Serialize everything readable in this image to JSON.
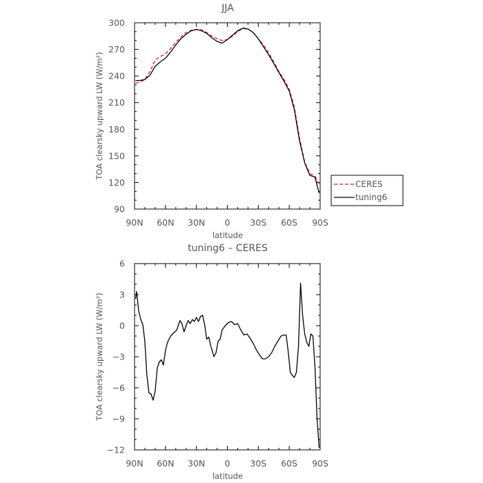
{
  "chart_data": [
    {
      "type": "line",
      "title": "JJA",
      "xlabel": "latitude",
      "ylabel": "TOA clearsky upward LW (W/m²)",
      "xlim": [
        90,
        -90
      ],
      "ylim": [
        90,
        300
      ],
      "x_tick_values": [
        90,
        60,
        30,
        0,
        -30,
        -60,
        -90
      ],
      "x_tick_labels": [
        "90N",
        "60N",
        "30N",
        "0",
        "30S",
        "60S",
        "90S"
      ],
      "y_ticks": [
        90,
        120,
        150,
        180,
        210,
        240,
        270,
        300
      ],
      "legend": {
        "position": "right",
        "entries": [
          "CERES",
          "tuning6"
        ]
      },
      "series": [
        {
          "name": "CERES",
          "color": "#e0141c",
          "dash": "dashed",
          "points": [
            [
              89,
              232
            ],
            [
              85,
              233
            ],
            [
              80,
              236
            ],
            [
              75,
              245
            ],
            [
              70,
              258
            ],
            [
              65,
              262
            ],
            [
              60,
              265
            ],
            [
              55,
              271
            ],
            [
              50,
              278
            ],
            [
              45,
              284
            ],
            [
              40,
              289
            ],
            [
              35,
              291.5
            ],
            [
              30,
              292.5
            ],
            [
              25,
              292
            ],
            [
              20,
              289
            ],
            [
              15,
              285
            ],
            [
              10,
              282
            ],
            [
              5,
              280
            ],
            [
              0,
              281
            ],
            [
              -5,
              285
            ],
            [
              -10,
              290
            ],
            [
              -15,
              293.5
            ],
            [
              -20,
              293
            ],
            [
              -25,
              289
            ],
            [
              -30,
              282
            ],
            [
              -35,
              275
            ],
            [
              -40,
              266
            ],
            [
              -45,
              256
            ],
            [
              -50,
              245
            ],
            [
              -55,
              236
            ],
            [
              -60,
              225
            ],
            [
              -65,
              205
            ],
            [
              -70,
              170
            ],
            [
              -75,
              143
            ],
            [
              -80,
              130
            ],
            [
              -85,
              127
            ],
            [
              -89,
              118
            ]
          ]
        },
        {
          "name": "tuning6",
          "color": "#000000",
          "dash": "solid",
          "points": [
            [
              89,
              235
            ],
            [
              85,
              235
            ],
            [
              80,
              236
            ],
            [
              75,
              241
            ],
            [
              70,
              251
            ],
            [
              65,
              256
            ],
            [
              60,
              260
            ],
            [
              55,
              267
            ],
            [
              50,
              275
            ],
            [
              45,
              282
            ],
            [
              40,
              287
            ],
            [
              35,
              291
            ],
            [
              30,
              292.5
            ],
            [
              25,
              291
            ],
            [
              20,
              288
            ],
            [
              15,
              283
            ],
            [
              10,
              279
            ],
            [
              5,
              277
            ],
            [
              0,
              281
            ],
            [
              -5,
              286
            ],
            [
              -10,
              291
            ],
            [
              -15,
              294
            ],
            [
              -20,
              293
            ],
            [
              -25,
              289
            ],
            [
              -30,
              282
            ],
            [
              -35,
              273
            ],
            [
              -40,
              264
            ],
            [
              -45,
              254
            ],
            [
              -50,
              244
            ],
            [
              -55,
              234
            ],
            [
              -60,
              223
            ],
            [
              -65,
              202
            ],
            [
              -70,
              167
            ],
            [
              -75,
              142
            ],
            [
              -80,
              128
            ],
            [
              -85,
              126
            ],
            [
              -89,
              108
            ]
          ]
        }
      ]
    },
    {
      "type": "line",
      "title": "tuning6 – CERES",
      "xlabel": "latitude",
      "ylabel": "TOA clearsky upward LW (W/m²)",
      "xlim": [
        90,
        -90
      ],
      "ylim": [
        -12,
        6
      ],
      "x_tick_values": [
        90,
        60,
        30,
        0,
        -30,
        -60,
        -90
      ],
      "x_tick_labels": [
        "90N",
        "60N",
        "30N",
        "0",
        "30S",
        "60S",
        "90S"
      ],
      "y_ticks": [
        -12,
        -9,
        -6,
        -3,
        0,
        3,
        6
      ],
      "y_tick_labels": [
        "−12",
        "−9",
        "−6",
        "−3",
        "0",
        "3",
        "6"
      ],
      "series": [
        {
          "name": "tuning6",
          "color": "#000000",
          "dash": "solid",
          "points": [
            [
              89,
              2.6
            ],
            [
              88,
              3.3
            ],
            [
              86,
              1.4
            ],
            [
              84,
              0.6
            ],
            [
              82,
              0.1
            ],
            [
              80,
              -1.5
            ],
            [
              78,
              -4.8
            ],
            [
              76,
              -6.5
            ],
            [
              74,
              -6.6
            ],
            [
              72,
              -7.2
            ],
            [
              70,
              -6.3
            ],
            [
              68,
              -4.1
            ],
            [
              66,
              -3.5
            ],
            [
              64,
              -3.3
            ],
            [
              62,
              -3.8
            ],
            [
              60,
              -2.4
            ],
            [
              58,
              -1.6
            ],
            [
              55,
              -1.0
            ],
            [
              52,
              -0.7
            ],
            [
              49,
              -0.4
            ],
            [
              46,
              0.5
            ],
            [
              44,
              0.2
            ],
            [
              42,
              -0.6
            ],
            [
              40,
              0.0
            ],
            [
              38,
              0.5
            ],
            [
              36,
              0.2
            ],
            [
              34,
              0.6
            ],
            [
              32,
              0.4
            ],
            [
              30,
              0.8
            ],
            [
              28,
              0.4
            ],
            [
              26,
              0.9
            ],
            [
              24,
              1.0
            ],
            [
              22,
              0.1
            ],
            [
              20,
              -1.3
            ],
            [
              18,
              -1.1
            ],
            [
              16,
              -2.0
            ],
            [
              13,
              -3.0
            ],
            [
              11,
              -2.6
            ],
            [
              9,
              -1.5
            ],
            [
              7,
              -1.3
            ],
            [
              5,
              -0.4
            ],
            [
              2,
              0.0
            ],
            [
              -1,
              0.3
            ],
            [
              -4,
              0.4
            ],
            [
              -7,
              0.1
            ],
            [
              -10,
              0.2
            ],
            [
              -13,
              -0.4
            ],
            [
              -16,
              -0.9
            ],
            [
              -19,
              -0.8
            ],
            [
              -22,
              -1.2
            ],
            [
              -25,
              -1.7
            ],
            [
              -28,
              -2.3
            ],
            [
              -31,
              -2.8
            ],
            [
              -34,
              -3.2
            ],
            [
              -37,
              -3.2
            ],
            [
              -40,
              -3.0
            ],
            [
              -43,
              -2.6
            ],
            [
              -46,
              -2.0
            ],
            [
              -49,
              -1.5
            ],
            [
              -52,
              -1.0
            ],
            [
              -55,
              -0.9
            ],
            [
              -57,
              -0.9
            ],
            [
              -59,
              -2.5
            ],
            [
              -61,
              -4.5
            ],
            [
              -63,
              -4.8
            ],
            [
              -65,
              -5.0
            ],
            [
              -67,
              -4.5
            ],
            [
              -69,
              -2.0
            ],
            [
              -71,
              4.1
            ],
            [
              -73,
              1.0
            ],
            [
              -75,
              -0.8
            ],
            [
              -77,
              -1.6
            ],
            [
              -79,
              -2.0
            ],
            [
              -81,
              -0.8
            ],
            [
              -83,
              -1.0
            ],
            [
              -85,
              -4.0
            ],
            [
              -87,
              -9.0
            ],
            [
              -89,
              -11.8
            ]
          ]
        }
      ]
    }
  ]
}
